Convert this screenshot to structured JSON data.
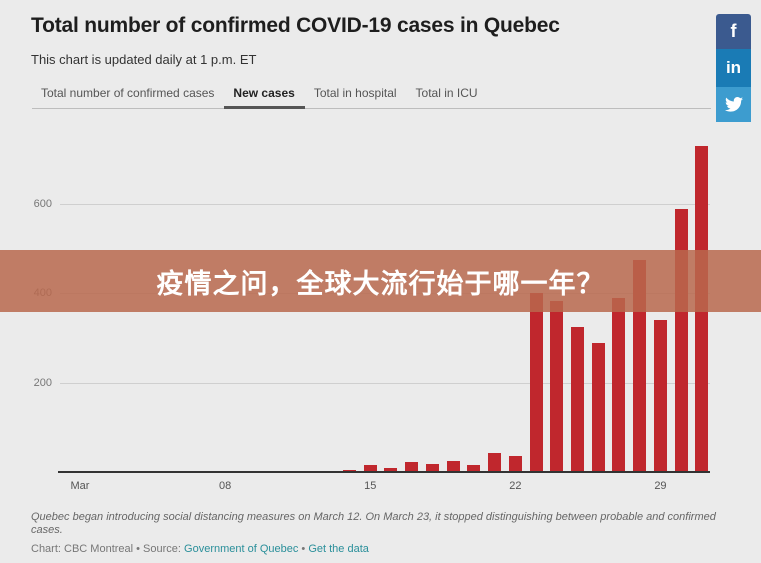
{
  "header": {
    "title": "Total number of confirmed COVID-19 cases in Quebec",
    "subtitle": "This chart is updated daily at 1 p.m. ET"
  },
  "tabs": [
    {
      "label": "Total number of confirmed cases",
      "active": false
    },
    {
      "label": "New cases",
      "active": true
    },
    {
      "label": "Total in hospital",
      "active": false
    },
    {
      "label": "Total in ICU",
      "active": false
    }
  ],
  "social": {
    "facebook": "f",
    "linkedin": "in",
    "twitter": "twitter-bird-icon"
  },
  "banner": {
    "text": "疫情之问，全球大流行始于哪一年？"
  },
  "colors": {
    "bar": "#c0272d",
    "facebook": "#3b5a8f",
    "linkedin": "#1a7bb5",
    "twitter": "#3d9ccf",
    "banner": "#b9684e",
    "link": "#2a8f9a"
  },
  "chart_data": {
    "type": "bar",
    "title": "Total number of confirmed COVID-19 cases in Quebec — New cases",
    "xlabel": "",
    "ylabel": "",
    "ylim": [
      0,
      740
    ],
    "yticks": [
      200,
      400,
      600
    ],
    "grid": true,
    "x_tick_labels": [
      {
        "day": 1,
        "label": "Mar"
      },
      {
        "day": 8,
        "label": "08"
      },
      {
        "day": 15,
        "label": "15"
      },
      {
        "day": 22,
        "label": "22"
      },
      {
        "day": 29,
        "label": "29"
      }
    ],
    "categories": [
      "Mar 1",
      "Mar 2",
      "Mar 3",
      "Mar 4",
      "Mar 5",
      "Mar 6",
      "Mar 7",
      "Mar 8",
      "Mar 9",
      "Mar 10",
      "Mar 11",
      "Mar 12",
      "Mar 13",
      "Mar 14",
      "Mar 15",
      "Mar 16",
      "Mar 17",
      "Mar 18",
      "Mar 19",
      "Mar 20",
      "Mar 21",
      "Mar 22",
      "Mar 23",
      "Mar 24",
      "Mar 25",
      "Mar 26",
      "Mar 27",
      "Mar 28",
      "Mar 29",
      "Mar 30",
      "Mar 31"
    ],
    "values": [
      0,
      0,
      0,
      0,
      0,
      0,
      0,
      0,
      0,
      1,
      2,
      2,
      3,
      4,
      15,
      9,
      22,
      17,
      25,
      16,
      42,
      36,
      400,
      382,
      324,
      288,
      389,
      474,
      340,
      588,
      729
    ]
  },
  "footer": {
    "note": "Quebec began introducing social distancing measures on March 12. On March 23, it stopped distinguishing between probable and confirmed cases.",
    "credit_prefix": "Chart: CBC Montreal • Source: ",
    "source_link": "Government of Quebec",
    "separator": " • ",
    "data_link": "Get the data"
  }
}
